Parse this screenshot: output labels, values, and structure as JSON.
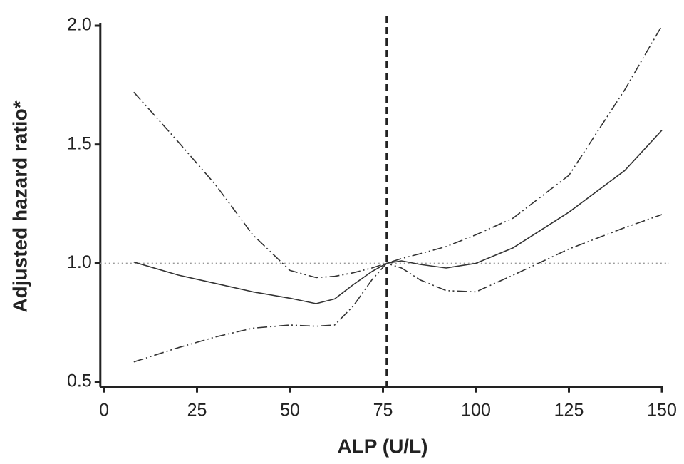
{
  "chart_data": {
    "type": "line",
    "xlabel": "ALP (U/L)",
    "ylabel": "Adjusted hazard ratio*",
    "x": [
      8,
      20,
      30,
      40,
      50,
      57,
      62,
      67,
      72,
      76,
      80,
      85,
      92,
      100,
      110,
      125,
      140,
      150
    ],
    "series": [
      {
        "color": "#333333",
        "dash": "solid",
        "values": [
          1.005,
          0.95,
          0.915,
          0.88,
          0.853,
          0.83,
          0.85,
          0.91,
          0.965,
          1.0,
          1.01,
          0.995,
          0.98,
          1.0,
          1.065,
          1.215,
          1.39,
          1.56
        ]
      },
      {
        "color": "#333333",
        "dash": "dash-dot-dot",
        "values": [
          1.72,
          1.51,
          1.33,
          1.12,
          0.97,
          0.94,
          0.945,
          0.96,
          0.98,
          1.0,
          1.02,
          1.04,
          1.07,
          1.12,
          1.19,
          1.37,
          1.73,
          2.0
        ]
      },
      {
        "color": "#333333",
        "dash": "dash-dot-dot",
        "values": [
          0.585,
          0.645,
          0.69,
          0.727,
          0.74,
          0.735,
          0.74,
          0.82,
          0.93,
          1.0,
          0.98,
          0.93,
          0.885,
          0.88,
          0.95,
          1.06,
          1.15,
          1.205
        ]
      }
    ],
    "hline": 1.0,
    "vline": 76,
    "xlim": [
      -1,
      150
    ],
    "ylim": [
      0.48,
      2.0
    ],
    "xticks": [
      0,
      25,
      50,
      75,
      100,
      125,
      150
    ],
    "yticks": [
      0.5,
      {
        "value": 1.0,
        "label": "1.0"
      },
      1.5,
      {
        "value": 2.0,
        "label": "2.0"
      }
    ]
  }
}
